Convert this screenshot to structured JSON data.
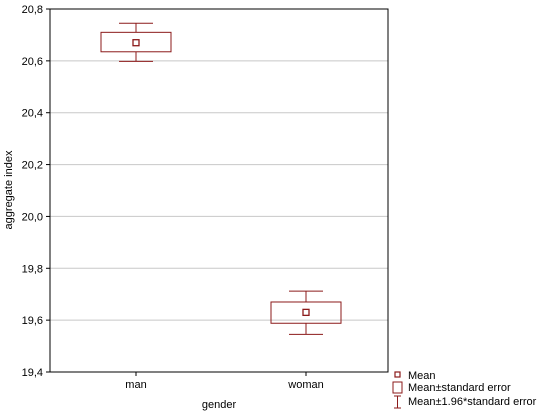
{
  "chart_data": {
    "type": "box",
    "title": "",
    "xlabel": "gender",
    "ylabel": "aggregate index",
    "categories": [
      "man",
      "woman"
    ],
    "series": [
      {
        "category": "man",
        "mean": 20.67,
        "se_low": 20.635,
        "se_high": 20.71,
        "ci_low": 20.598,
        "ci_high": 20.745
      },
      {
        "category": "woman",
        "mean": 19.63,
        "se_low": 19.588,
        "se_high": 19.67,
        "ci_low": 19.545,
        "ci_high": 19.712
      }
    ],
    "ylim": [
      19.4,
      20.8
    ],
    "yticks": [
      19.4,
      19.6,
      19.8,
      20.0,
      20.2,
      20.4,
      20.6,
      20.8
    ],
    "ytick_labels": [
      "19,4",
      "19,6",
      "19,8",
      "20,0",
      "20,2",
      "20,4",
      "20,6",
      "20,8"
    ],
    "grid": true,
    "legend_position": "bottom-right",
    "legend": [
      "Mean",
      "Mean±standard error",
      "Mean±1.96*standard error"
    ],
    "colors": {
      "series": "#8b1a1a",
      "grid": "#c8c8c8",
      "axis": "#000000"
    }
  }
}
